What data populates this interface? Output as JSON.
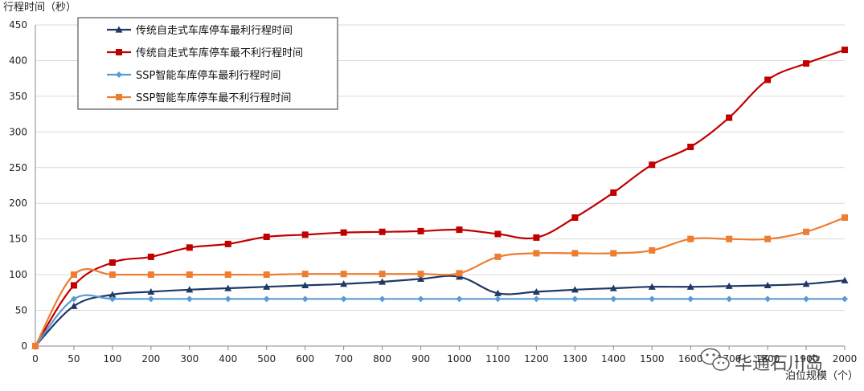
{
  "chart_data": {
    "type": "line",
    "ylabel": "行程时间（秒）",
    "xlabel": "泊位规模（个）",
    "categories": [
      "0",
      "50",
      "100",
      "200",
      "300",
      "400",
      "500",
      "600",
      "700",
      "800",
      "900",
      "1000",
      "1100",
      "1200",
      "1300",
      "1400",
      "1500",
      "1600",
      "1700",
      "1800",
      "1900",
      "2000"
    ],
    "ylim": [
      0,
      450
    ],
    "yticks": [
      0,
      50,
      100,
      150,
      200,
      250,
      300,
      350,
      400,
      450
    ],
    "grid": true,
    "legend_position": "top-left",
    "series": [
      {
        "name": "传统自走式车库停车最利行程时间",
        "color": "#1f3864",
        "marker": "triangle",
        "values": [
          0,
          56,
          72,
          76,
          79,
          81,
          83,
          85,
          87,
          90,
          94,
          97,
          74,
          76,
          79,
          81,
          83,
          83,
          84,
          85,
          87,
          92
        ]
      },
      {
        "name": "传统自走式车库停车最不利行程时间",
        "color": "#c00000",
        "marker": "square",
        "values": [
          0,
          85,
          117,
          125,
          138,
          143,
          153,
          156,
          159,
          160,
          161,
          163,
          157,
          152,
          180,
          215,
          254,
          279,
          320,
          373,
          396,
          415
        ]
      },
      {
        "name": "SSP智能车库停车最利行程时间",
        "color": "#5b9bd5",
        "marker": "diamond",
        "values": [
          0,
          66,
          66,
          66,
          66,
          66,
          66,
          66,
          66,
          66,
          66,
          66,
          66,
          66,
          66,
          66,
          66,
          66,
          66,
          66,
          66,
          66
        ]
      },
      {
        "name": "SSP智能车库停车最不利行程时间",
        "color": "#ed7d31",
        "marker": "square",
        "values": [
          0,
          100,
          100,
          100,
          100,
          100,
          100,
          101,
          101,
          101,
          101,
          102,
          125,
          130,
          130,
          130,
          134,
          150,
          150,
          150,
          160,
          180
        ]
      }
    ]
  },
  "watermark": {
    "text": "华通石川岛"
  }
}
